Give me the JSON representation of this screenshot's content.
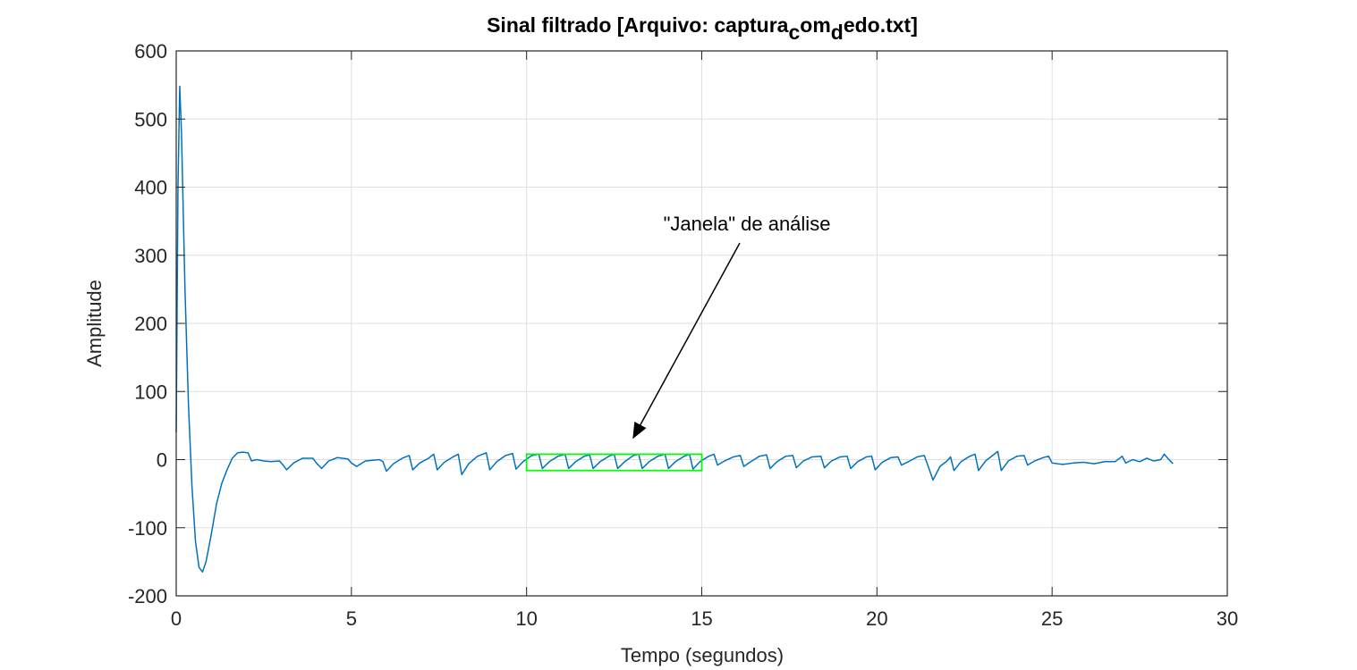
{
  "chart_data": {
    "type": "line",
    "title": [
      {
        "text": "Sinal filtrado [Arquivo: captura",
        "sub": false
      },
      {
        "text": "c",
        "sub": true
      },
      {
        "text": "om",
        "sub": false
      },
      {
        "text": "d",
        "sub": true
      },
      {
        "text": "edo.txt]",
        "sub": false
      }
    ],
    "x_label": "Tempo (segundos)",
    "y_label": "Amplitude",
    "color": "#0072bd",
    "grid": true,
    "xlim": [
      0,
      30
    ],
    "ylim": [
      -200,
      600
    ],
    "xticks": [
      0,
      5,
      10,
      15,
      20,
      25,
      30
    ],
    "yticks": [
      -200,
      -100,
      0,
      100,
      200,
      300,
      400,
      500,
      600
    ],
    "x": [
      0,
      0.05,
      0.1,
      0.15,
      0.25,
      0.35,
      0.45,
      0.55,
      0.65,
      0.75,
      0.85,
      1.0,
      1.15,
      1.3,
      1.45,
      1.6,
      1.75,
      1.9,
      2.05,
      2.15,
      2.3,
      2.5,
      2.7,
      2.95,
      3.05,
      3.15,
      3.35,
      3.6,
      3.9,
      4.0,
      4.15,
      4.35,
      4.6,
      4.9,
      5.0,
      5.15,
      5.4,
      5.8,
      5.9,
      6.0,
      6.2,
      6.45,
      6.65,
      6.75,
      6.95,
      7.2,
      7.35,
      7.45,
      7.65,
      7.9,
      8.05,
      8.15,
      8.35,
      8.6,
      8.85,
      8.95,
      9.15,
      9.4,
      9.6,
      9.7,
      9.9,
      10.15,
      10.35,
      10.45,
      10.65,
      10.9,
      11.1,
      11.2,
      11.4,
      11.65,
      11.8,
      11.9,
      12.1,
      12.35,
      12.5,
      12.6,
      12.8,
      13.05,
      13.2,
      13.3,
      13.5,
      13.75,
      13.95,
      14.05,
      14.25,
      14.5,
      14.65,
      14.75,
      14.95,
      15.2,
      15.35,
      15.45,
      15.65,
      15.9,
      16.1,
      16.2,
      16.4,
      16.65,
      16.85,
      16.95,
      17.15,
      17.4,
      17.6,
      17.7,
      17.9,
      18.15,
      18.4,
      18.5,
      18.7,
      18.95,
      19.15,
      19.25,
      19.45,
      19.7,
      19.85,
      19.95,
      20.15,
      20.4,
      20.6,
      20.7,
      20.9,
      21.15,
      21.35,
      21.45,
      21.6,
      21.8,
      22.0,
      22.1,
      22.2,
      22.4,
      22.65,
      22.8,
      22.9,
      23.1,
      23.35,
      23.45,
      23.55,
      23.75,
      24.0,
      24.2,
      24.3,
      24.5,
      24.75,
      24.9,
      25.0,
      25.3,
      25.6,
      25.9,
      26.2,
      26.5,
      26.8,
      27.0,
      27.1,
      27.3,
      27.5,
      27.7,
      27.9,
      28.1,
      28.2,
      28.3,
      28.45
    ],
    "values": [
      40,
      400,
      548,
      480,
      250,
      80,
      -40,
      -120,
      -158,
      -165,
      -150,
      -110,
      -65,
      -35,
      -15,
      2,
      10,
      11,
      10,
      -2,
      0,
      -2,
      -3,
      -2,
      -8,
      -15,
      -5,
      2,
      2,
      -5,
      -13,
      -2,
      3,
      1,
      -5,
      -10,
      -2,
      0,
      -3,
      -17,
      -6,
      2,
      6,
      -15,
      -5,
      2,
      8,
      -15,
      -4,
      4,
      8,
      -22,
      -6,
      5,
      10,
      -15,
      -3,
      6,
      9,
      -14,
      -3,
      6,
      8,
      -13,
      -3,
      5,
      8,
      -13,
      -3,
      5,
      7,
      -13,
      -3,
      5,
      8,
      -13,
      -3,
      6,
      8,
      -13,
      -3,
      5,
      8,
      -13,
      -3,
      5,
      8,
      -14,
      -3,
      5,
      8,
      -8,
      -2,
      4,
      6,
      -10,
      -3,
      5,
      7,
      -13,
      -3,
      5,
      6,
      -12,
      -2,
      4,
      5,
      -12,
      -2,
      4,
      5,
      -13,
      -3,
      4,
      5,
      -15,
      -4,
      3,
      4,
      -8,
      -3,
      4,
      6,
      -8,
      -30,
      -10,
      -2,
      4,
      -16,
      -3,
      5,
      8,
      -16,
      -2,
      8,
      12,
      -16,
      -2,
      5,
      6,
      -8,
      -2,
      3,
      5,
      -5,
      -7,
      -5,
      -4,
      -6,
      -3,
      -3,
      5,
      -5,
      0,
      -3,
      2,
      -2,
      0,
      8,
      2,
      -6
    ],
    "window": {
      "xlim": [
        10,
        15
      ],
      "ylim": [
        -16,
        8
      ],
      "color": "#00ff00"
    },
    "annotation": "\"Janela\" de análise"
  }
}
